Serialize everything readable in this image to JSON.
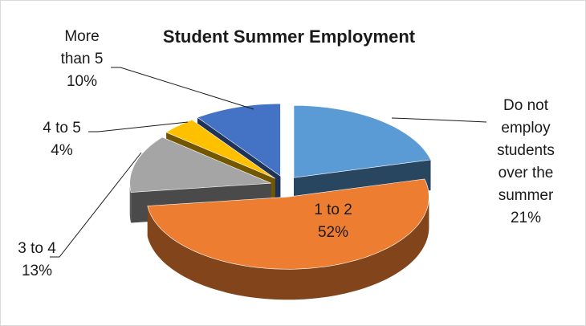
{
  "chart_data": {
    "type": "pie3d",
    "title": "Student Summer Employment",
    "categories": [
      "Do not employ students over the summer",
      "1 to 2",
      "3 to 4",
      "4 to 5",
      "More than 5"
    ],
    "values": [
      21,
      52,
      13,
      4,
      10
    ],
    "value_labels": [
      "21%",
      "52%",
      "13%",
      "4%",
      "10%"
    ],
    "colors": [
      "#5b9bd5",
      "#ed7d31",
      "#a5a5a5",
      "#ffc000",
      "#4472c4"
    ]
  }
}
